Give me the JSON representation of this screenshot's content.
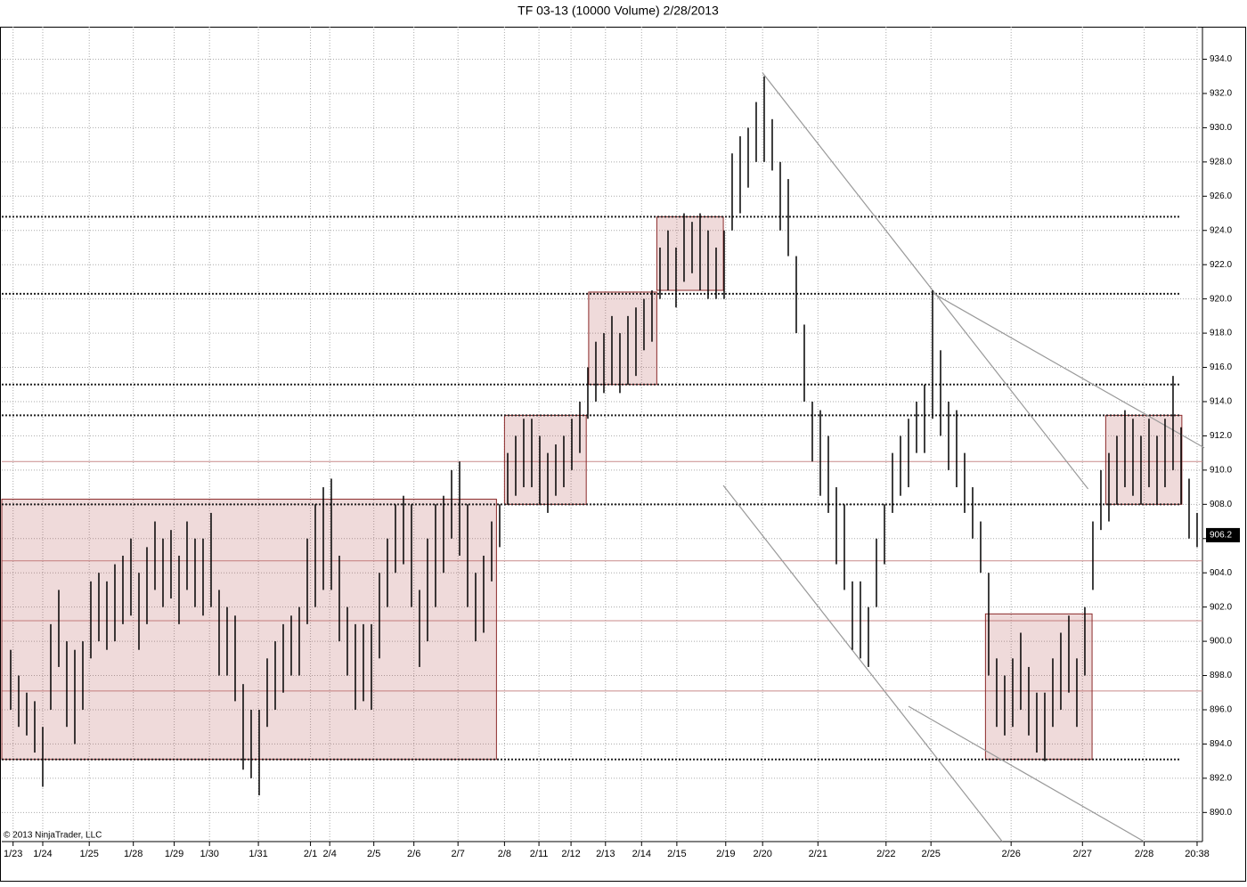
{
  "chart_data": {
    "type": "hlc_bar",
    "title": "TF 03-13 (10000 Volume)  2/28/2013",
    "copyright": "© 2013 NinjaTrader, LLC",
    "color": "#000000",
    "grid": true,
    "xlim": [
      -1.11,
      148.67
    ],
    "ylim": [
      888.3,
      935.9
    ],
    "xticks": [
      {
        "value": 0.3,
        "label": "1/23"
      },
      {
        "value": 4,
        "label": "1/24"
      },
      {
        "value": 9.8,
        "label": "1/25"
      },
      {
        "value": 15.3,
        "label": "1/28"
      },
      {
        "value": 20.4,
        "label": "1/29"
      },
      {
        "value": 24.8,
        "label": "1/30"
      },
      {
        "value": 30.9,
        "label": "1/31"
      },
      {
        "value": 37.4,
        "label": "2/1"
      },
      {
        "value": 39.8,
        "label": "2/4"
      },
      {
        "value": 45.3,
        "label": "2/5"
      },
      {
        "value": 50.3,
        "label": "2/6"
      },
      {
        "value": 55.8,
        "label": "2/7"
      },
      {
        "value": 61.6,
        "label": "2/8"
      },
      {
        "value": 65.9,
        "label": "2/11"
      },
      {
        "value": 69.9,
        "label": "2/12"
      },
      {
        "value": 74.2,
        "label": "2/13"
      },
      {
        "value": 78.7,
        "label": "2/14"
      },
      {
        "value": 83.1,
        "label": "2/15"
      },
      {
        "value": 89.2,
        "label": "2/19"
      },
      {
        "value": 93.8,
        "label": "2/20"
      },
      {
        "value": 100.7,
        "label": "2/21"
      },
      {
        "value": 109.2,
        "label": "2/22"
      },
      {
        "value": 114.8,
        "label": "2/25"
      },
      {
        "value": 124.8,
        "label": "2/26"
      },
      {
        "value": 133.7,
        "label": "2/27"
      },
      {
        "value": 141.4,
        "label": "2/28"
      },
      {
        "value": 148,
        "label": "20:38"
      }
    ],
    "yticks": [
      {
        "value": 890,
        "label": "890.0"
      },
      {
        "value": 892,
        "label": "892.0"
      },
      {
        "value": 894,
        "label": "894.0"
      },
      {
        "value": 896,
        "label": "896.0"
      },
      {
        "value": 898,
        "label": "898.0"
      },
      {
        "value": 900,
        "label": "900.0"
      },
      {
        "value": 902,
        "label": "902.0"
      },
      {
        "value": 904,
        "label": "904.0"
      },
      {
        "value": 906,
        "label": "906.0"
      },
      {
        "value": 908,
        "label": "908.0"
      },
      {
        "value": 910,
        "label": "910.0"
      },
      {
        "value": 912,
        "label": "912.0"
      },
      {
        "value": 914,
        "label": "914.0"
      },
      {
        "value": 916,
        "label": "916.0"
      },
      {
        "value": 918,
        "label": "918.0"
      },
      {
        "value": 920,
        "label": "920.0"
      },
      {
        "value": 922,
        "label": "922.0"
      },
      {
        "value": 924,
        "label": "924.0"
      },
      {
        "value": 926,
        "label": "926.0"
      },
      {
        "value": 928,
        "label": "928.0"
      },
      {
        "value": 930,
        "label": "930.0"
      },
      {
        "value": 932,
        "label": "932.0"
      },
      {
        "value": 934,
        "label": "934.0"
      }
    ],
    "high": [
      899.5,
      898,
      897,
      896.5,
      895,
      901,
      903,
      900,
      899.5,
      900,
      903.5,
      904,
      903.5,
      904.5,
      905,
      906,
      904,
      905.5,
      907,
      906,
      906.5,
      905,
      907,
      906,
      906,
      907.5,
      903,
      902,
      901.5,
      897.5,
      896,
      896,
      899,
      900,
      901,
      901.5,
      902,
      906,
      908,
      909,
      909.5,
      905,
      902,
      901,
      901,
      901,
      904,
      906,
      908,
      908.5,
      908,
      903,
      906,
      908,
      908.5,
      910,
      910.5,
      908,
      904,
      905,
      907,
      908,
      911,
      912,
      913,
      913,
      912,
      911,
      911.5,
      912,
      913,
      914,
      916,
      917.5,
      918,
      919,
      918,
      919,
      919.5,
      920,
      920.5,
      923,
      924,
      923,
      925,
      924.5,
      925,
      924,
      923,
      924,
      928.5,
      929.5,
      930,
      931.5,
      933,
      930.5,
      928,
      927,
      922.5,
      918.5,
      914,
      913.5,
      912,
      909,
      908,
      903.5,
      903.5,
      902,
      906,
      908,
      911,
      912,
      913,
      914,
      915,
      920.5,
      917,
      914,
      913.5,
      911,
      909,
      907,
      904,
      899,
      898,
      899,
      900.5,
      898.5,
      897,
      897,
      899,
      900.5,
      901.5,
      899,
      902,
      907,
      910,
      911,
      912,
      913.5,
      913,
      912,
      913,
      912,
      913,
      915.5,
      912.5,
      909.5,
      907.5
    ],
    "low": [
      896,
      895,
      894.5,
      893.5,
      891.5,
      896,
      898.5,
      895,
      894,
      896,
      899,
      900,
      899.5,
      900,
      901,
      901.5,
      899.5,
      901,
      903,
      902,
      902.5,
      901,
      903,
      902,
      901.5,
      902,
      898,
      898,
      896.5,
      892.5,
      892,
      891,
      895,
      896,
      897,
      898,
      898,
      901,
      902,
      903,
      903,
      900,
      898,
      896,
      896.5,
      896,
      899,
      902,
      904,
      904.5,
      902,
      898.5,
      900,
      902,
      904,
      906,
      905,
      902,
      900,
      900.5,
      903.5,
      905.5,
      908,
      908.5,
      909,
      909,
      908,
      907.5,
      908.5,
      909,
      910,
      911,
      913,
      914,
      914.5,
      915,
      914.5,
      915,
      915.5,
      917,
      917.5,
      920,
      920.5,
      919.5,
      921,
      921.5,
      920.5,
      920,
      920,
      920,
      924,
      925,
      926.5,
      928,
      928,
      927.5,
      924,
      922.5,
      918,
      914,
      910.5,
      908.5,
      907.5,
      904.5,
      903,
      899.5,
      899,
      898.5,
      902,
      904.5,
      907.5,
      908.5,
      909,
      911,
      911,
      913,
      912,
      910,
      909,
      907.5,
      906,
      904,
      898,
      895,
      894.5,
      895,
      896,
      894.5,
      893.5,
      893,
      895,
      896,
      897,
      895,
      898,
      903,
      906.5,
      907,
      908,
      909,
      908.5,
      908,
      909,
      908,
      909,
      910,
      908,
      906,
      905.5
    ],
    "last_price": {
      "value": 906.2,
      "label": "906.2"
    },
    "zones": [
      [
        -1.11,
        60.6,
        893.1,
        908.3
      ],
      [
        61.6,
        71.8,
        908,
        913.2
      ],
      [
        72.1,
        80.6,
        915,
        920.4
      ],
      [
        80.6,
        88.9,
        920.5,
        924.8
      ],
      [
        121.6,
        134.9,
        893.1,
        901.6
      ],
      [
        136.6,
        146.1,
        908,
        913.2
      ]
    ],
    "levels": [
      924.8,
      920.3,
      915,
      913.2,
      908,
      893.1
    ],
    "minor_levels": [
      910.5,
      904.7,
      901.2,
      897.1
    ],
    "trend_lines": [
      [
        93.8,
        933.2,
        134.4,
        908.9
      ],
      [
        114.8,
        920.4,
        148.9,
        911.3
      ],
      [
        88.9,
        909.1,
        123.7,
        888.3
      ],
      [
        112,
        896.2,
        141.4,
        888.3
      ]
    ]
  }
}
